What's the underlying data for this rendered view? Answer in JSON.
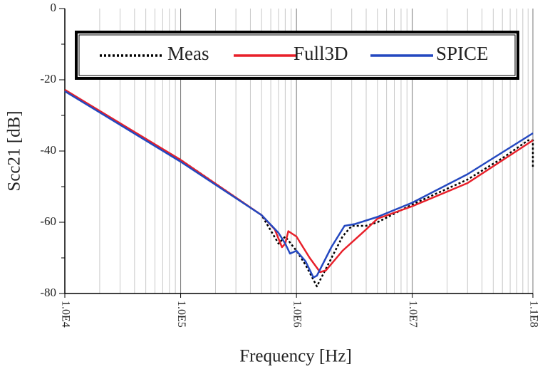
{
  "chart_data": {
    "type": "line",
    "xlabel": "Frequency [Hz]",
    "ylabel": "Scc21 [dB]",
    "xscale": "log",
    "xlim": [
      10000,
      110000000
    ],
    "ylim": [
      -80,
      0
    ],
    "xticks": [
      {
        "value": 10000,
        "label": "1.0E4"
      },
      {
        "value": 100000,
        "label": "1.0E5"
      },
      {
        "value": 1000000,
        "label": "1.0E6"
      },
      {
        "value": 10000000,
        "label": "1.0E7"
      },
      {
        "value": 110000000,
        "label": "1.1E8"
      }
    ],
    "xminor_ticks": [
      20000,
      30000,
      40000,
      50000,
      60000,
      70000,
      80000,
      90000,
      200000,
      300000,
      400000,
      500000,
      600000,
      700000,
      800000,
      900000,
      2000000,
      3000000,
      4000000,
      5000000,
      6000000,
      7000000,
      8000000,
      9000000,
      20000000,
      30000000,
      40000000,
      50000000,
      60000000,
      70000000,
      80000000,
      90000000,
      100000000
    ],
    "yticks": [
      0,
      -20,
      -40,
      -60,
      -80
    ],
    "yminor_ticks": [
      -10,
      -30,
      -50,
      -70
    ],
    "grid": "x",
    "legend": "upper center",
    "series": [
      {
        "name": "Meas",
        "color": "#000000",
        "style": "dotted",
        "x": [
          10000,
          100000,
          500000,
          700000,
          800000,
          1000000,
          1200000,
          1500000,
          1800000,
          2500000,
          3000000,
          4000000,
          5000000,
          10000000,
          30000000,
          60000000,
          100000000,
          110000000,
          110000000
        ],
        "values": [
          -23,
          -42.5,
          -58,
          -66,
          -64,
          -68,
          -72,
          -78,
          -73,
          -64,
          -61,
          -61,
          -60,
          -55,
          -48,
          -42,
          -37,
          -37,
          -45
        ]
      },
      {
        "name": "Full3D",
        "color": "#e8202a",
        "style": "solid",
        "x": [
          10000,
          100000,
          500000,
          650000,
          750000,
          800000,
          850000,
          1000000,
          1300000,
          1600000,
          1800000,
          2500000,
          4000000,
          5000000,
          10000000,
          30000000,
          110000000
        ],
        "values": [
          -22.8,
          -42.5,
          -58,
          -62,
          -67,
          -66,
          -62.5,
          -64,
          -70,
          -74,
          -73.5,
          -68,
          -62,
          -59,
          -55.5,
          -49,
          -37
        ]
      },
      {
        "name": "SPICE",
        "color": "#2448c0",
        "style": "solid",
        "x": [
          10000,
          100000,
          500000,
          700000,
          800000,
          880000,
          1000000,
          1200000,
          1400000,
          1500000,
          2000000,
          2600000,
          3200000,
          4000000,
          5000000,
          10000000,
          30000000,
          110000000
        ],
        "values": [
          -23.2,
          -43,
          -58,
          -63,
          -66,
          -68.8,
          -68,
          -71,
          -75.5,
          -75,
          -67,
          -61,
          -60.5,
          -59.5,
          -58.5,
          -54.5,
          -46.5,
          -35
        ]
      }
    ]
  }
}
